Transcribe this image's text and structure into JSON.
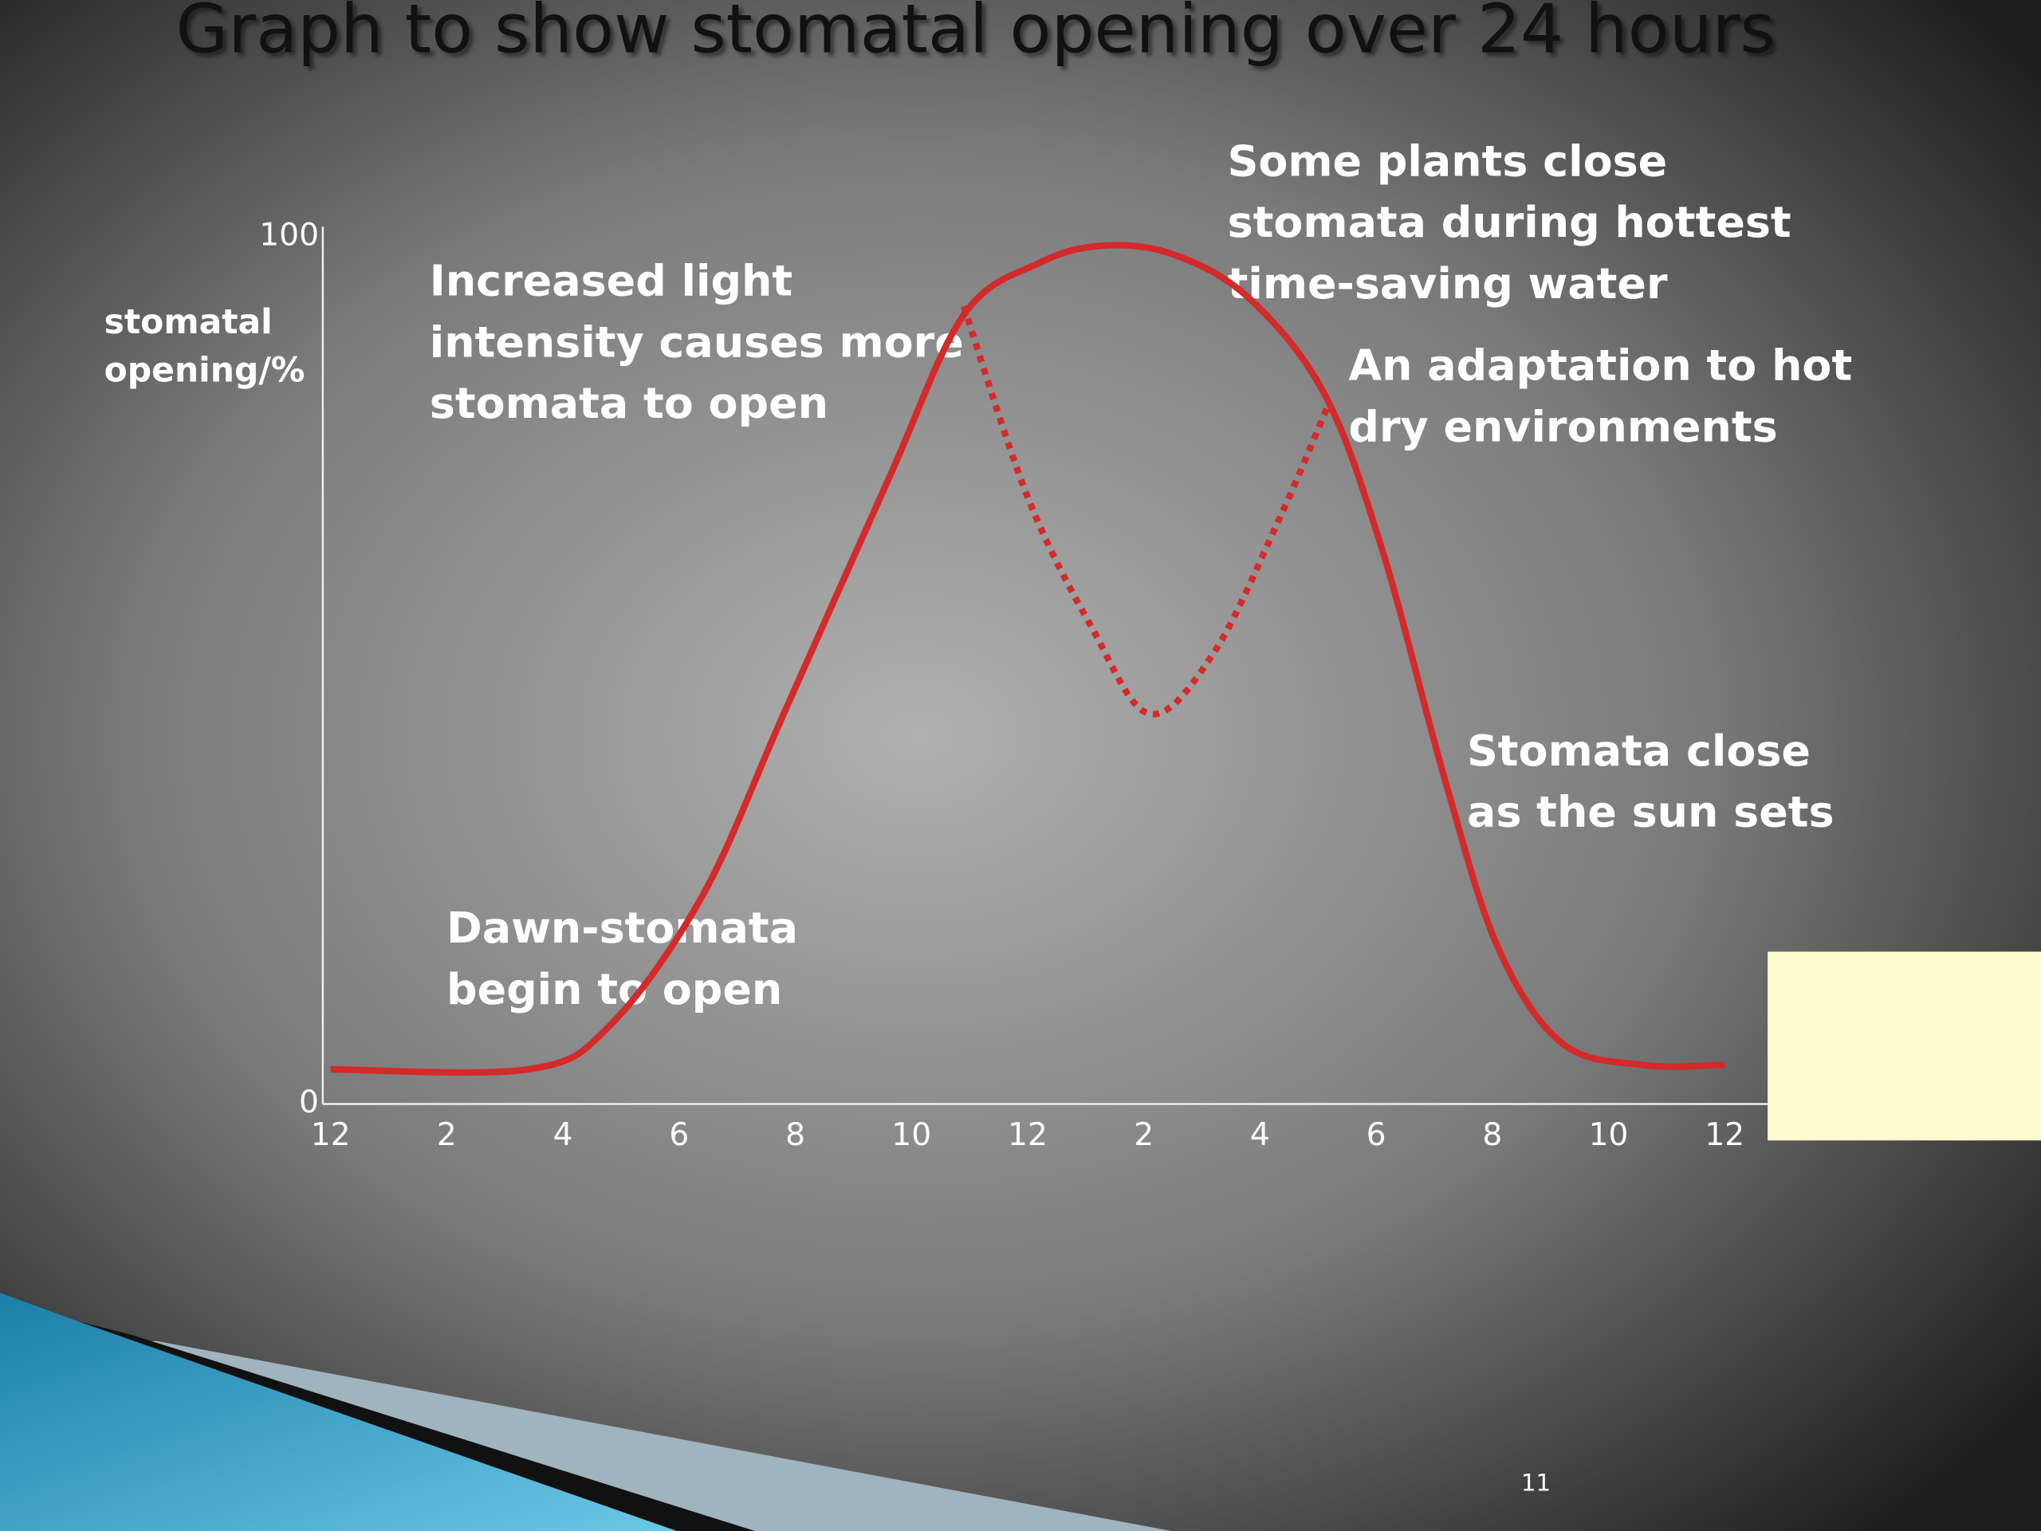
{
  "chart_data": {
    "type": "line",
    "title": "Graph to show stomatal opening over 24 hours",
    "y_label": "stomatal opening/%",
    "xlim": [
      0,
      24
    ],
    "ylim": [
      0,
      100
    ],
    "yticks": [
      0,
      100
    ],
    "xticks": [
      {
        "value": 0,
        "label": "12"
      },
      2,
      4,
      6,
      8,
      10,
      12,
      {
        "value": 14,
        "label": "2"
      },
      {
        "value": 16,
        "label": "4"
      },
      {
        "value": 18,
        "label": "6"
      },
      {
        "value": 20,
        "label": "8"
      },
      {
        "value": 22,
        "label": "10"
      },
      {
        "value": 24,
        "label": "12"
      }
    ],
    "series": [
      {
        "color": "#d42a2a",
        "dashed": false,
        "x": [
          0,
          3.4,
          4.8,
          6.4,
          7.8,
          9.6,
          10.9,
          12.2,
          13.3,
          14.5,
          15.8,
          17.1,
          18.1,
          19.2,
          20.1,
          21.2,
          22.6,
          24
        ],
        "values": [
          4,
          4,
          9,
          24,
          45,
          72,
          91,
          97,
          99,
          98,
          93,
          82,
          64,
          37,
          18,
          7,
          4.5,
          4.5
        ]
      },
      {
        "color": "#d42a2a",
        "dashed": true,
        "x": [
          10.9,
          12,
          13.1,
          14.1,
          15.2,
          16.3,
          17.2
        ],
        "values": [
          92,
          70,
          55,
          45,
          52,
          67,
          81
        ]
      }
    ],
    "annotations": [
      "Increased light intensity causes more stomata to open",
      "Some plants close stomata during hottest time-saving water",
      "An adaptation to hot dry environments",
      "Stomata close as the sun sets",
      "Dawn-stomata begin to open"
    ]
  },
  "page_number": "11"
}
